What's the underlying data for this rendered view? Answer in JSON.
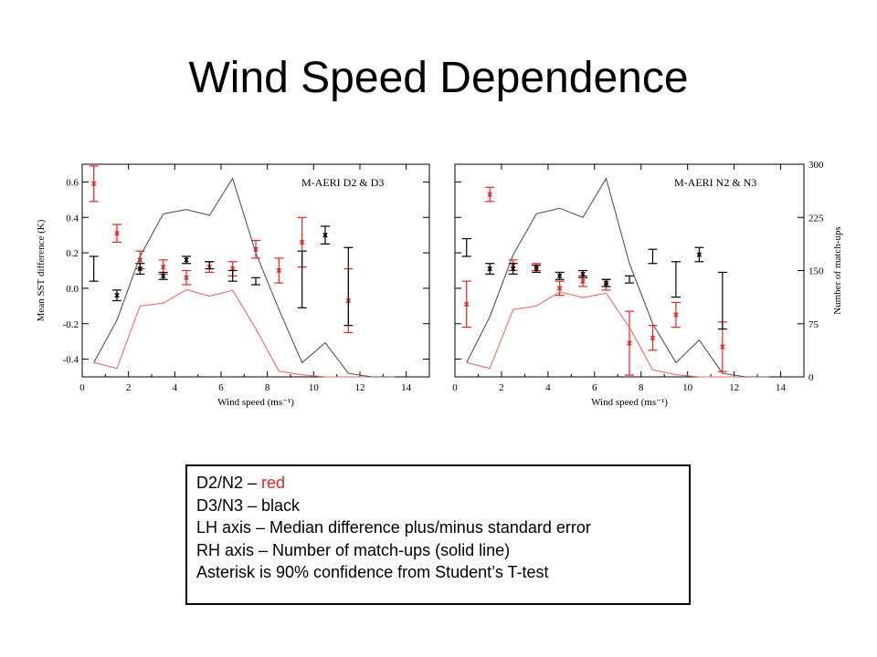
{
  "slide": {
    "title": "Wind Speed Dependence"
  },
  "colors": {
    "red": "#e8231f",
    "black": "#000000",
    "count_red": "#ef6a6a",
    "count_black": "#555555"
  },
  "legend": {
    "line1_prefix": "D2/N2 – ",
    "line1_red": "red",
    "line2": "D3/N3 – black",
    "line3": "LH axis – Median difference plus/minus standard error",
    "line4": "RH axis – Number of match-ups (solid line)",
    "line5": "Asterisk is 90% confidence from Student’s T-test"
  },
  "chart_data": [
    {
      "type": "scatter",
      "title": "M-AERI D2 & D3",
      "xlabel": "Wind speed (ms⁻¹)",
      "ylabel": "Mean SST difference (K)",
      "y2label": "",
      "xlim": [
        0,
        15
      ],
      "ylim": [
        -0.5,
        0.7
      ],
      "y2lim": [
        0,
        300
      ],
      "xticks": [
        0,
        2,
        4,
        6,
        8,
        10,
        12,
        14
      ],
      "yticks": [
        -0.4,
        -0.2,
        0.0,
        0.2,
        0.4,
        0.6
      ],
      "y2ticks": [],
      "series": [
        {
          "name": "D2",
          "color": "red",
          "x": [
            0.5,
            1.5,
            2.5,
            3.5,
            4.5,
            5.5,
            6.5,
            7.5,
            8.5,
            9.5,
            11.5
          ],
          "y": [
            0.59,
            0.31,
            0.16,
            0.12,
            0.06,
            0.12,
            0.11,
            0.22,
            0.1,
            0.26,
            -0.07
          ],
          "err": [
            0.1,
            0.05,
            0.05,
            0.04,
            0.04,
            0.03,
            0.04,
            0.05,
            0.07,
            0.14,
            0.18
          ],
          "asterisk": [
            true,
            true,
            true,
            true,
            true,
            true,
            true,
            true,
            true,
            true,
            true
          ]
        },
        {
          "name": "D3",
          "color": "black",
          "x": [
            0.5,
            1.5,
            2.5,
            3.5,
            4.5,
            5.5,
            6.5,
            7.5,
            9.5,
            10.5,
            11.5
          ],
          "y": [
            0.11,
            -0.04,
            0.11,
            0.07,
            0.16,
            0.13,
            0.07,
            0.04,
            0.05,
            0.3,
            0.01
          ],
          "err": [
            0.07,
            0.03,
            0.03,
            0.02,
            0.02,
            0.02,
            0.03,
            0.02,
            0.16,
            0.05,
            0.22
          ],
          "asterisk": [
            false,
            true,
            true,
            true,
            true,
            false,
            false,
            false,
            false,
            true,
            false
          ]
        },
        {
          "name": "D2 count",
          "color": "count_red",
          "axis": "right",
          "x": [
            0.5,
            1.5,
            2.5,
            3.5,
            4.5,
            5.5,
            6.5,
            7.5,
            8.5,
            9.5,
            10.5,
            11.5,
            12.5,
            13.5
          ],
          "y": [
            20,
            12,
            100,
            104,
            123,
            114,
            122,
            68,
            8,
            3,
            0,
            0,
            0,
            0
          ]
        },
        {
          "name": "D3 count",
          "color": "count_black",
          "axis": "right",
          "x": [
            0.5,
            1.5,
            2.5,
            3.5,
            4.5,
            5.5,
            6.5,
            7.5,
            8.5,
            9.5,
            10.5,
            11.5,
            12.5,
            13.5
          ],
          "y": [
            20,
            80,
            170,
            230,
            236,
            228,
            280,
            175,
            95,
            20,
            48,
            5,
            0,
            0
          ]
        }
      ]
    },
    {
      "type": "scatter",
      "title": "M-AERI N2 & N3",
      "xlabel": "Wind speed (ms⁻¹)",
      "ylabel": "",
      "y2label": "Number of match-ups",
      "xlim": [
        0,
        15
      ],
      "ylim": [
        -0.5,
        0.7
      ],
      "y2lim": [
        0,
        300
      ],
      "xticks": [
        0,
        2,
        4,
        6,
        8,
        10,
        12,
        14
      ],
      "yticks": [],
      "y2ticks": [
        0,
        75,
        150,
        225,
        300
      ],
      "series": [
        {
          "name": "N2",
          "color": "red",
          "x": [
            0.5,
            1.5,
            2.5,
            3.5,
            4.5,
            5.5,
            6.5,
            7.5,
            8.5,
            9.5,
            11.5
          ],
          "y": [
            -0.09,
            0.53,
            0.13,
            0.12,
            0.0,
            0.04,
            0.02,
            -0.31,
            -0.28,
            -0.15,
            -0.33
          ],
          "err": [
            0.13,
            0.04,
            0.03,
            0.02,
            0.04,
            0.03,
            0.03,
            0.18,
            0.07,
            0.07,
            0.14
          ],
          "asterisk": [
            true,
            true,
            true,
            true,
            true,
            true,
            true,
            true,
            true,
            true,
            true
          ]
        },
        {
          "name": "N3",
          "color": "black",
          "x": [
            0.5,
            1.5,
            2.5,
            3.5,
            4.5,
            5.5,
            6.5,
            7.5,
            8.5,
            9.5,
            10.5,
            11.5
          ],
          "y": [
            0.23,
            0.11,
            0.11,
            0.11,
            0.07,
            0.08,
            0.03,
            0.05,
            0.18,
            0.05,
            0.19,
            -0.07
          ],
          "err": [
            0.05,
            0.03,
            0.03,
            0.02,
            0.02,
            0.02,
            0.02,
            0.02,
            0.04,
            0.1,
            0.04,
            0.16
          ],
          "asterisk": [
            false,
            true,
            true,
            true,
            true,
            true,
            true,
            false,
            false,
            false,
            true,
            false
          ]
        },
        {
          "name": "N2 count",
          "color": "count_red",
          "axis": "right",
          "x": [
            0.5,
            1.5,
            2.5,
            3.5,
            4.5,
            5.5,
            6.5,
            7.5,
            8.5,
            9.5,
            10.5,
            11.5,
            12.5,
            13.5
          ],
          "y": [
            20,
            12,
            95,
            100,
            120,
            112,
            118,
            70,
            10,
            3,
            0,
            0,
            0,
            0
          ]
        },
        {
          "name": "N3 count",
          "color": "count_black",
          "axis": "right",
          "x": [
            0.5,
            1.5,
            2.5,
            3.5,
            4.5,
            5.5,
            6.5,
            7.5,
            8.5,
            9.5,
            10.5,
            11.5,
            12.5,
            13.5
          ],
          "y": [
            20,
            85,
            172,
            230,
            238,
            225,
            280,
            160,
            75,
            20,
            52,
            5,
            0,
            0
          ]
        }
      ]
    }
  ]
}
